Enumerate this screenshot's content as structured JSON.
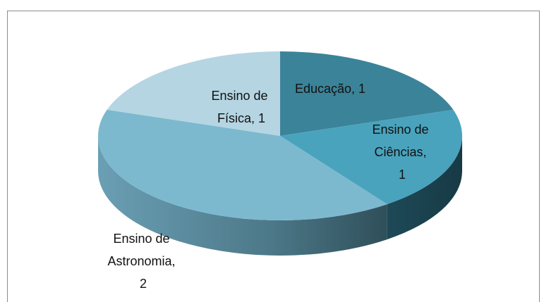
{
  "chart_data": {
    "type": "pie",
    "categories": [
      "Educação",
      "Ensino de Ciências",
      "Ensino de Astronomia",
      "Ensino de Física"
    ],
    "values": [
      1,
      1,
      2,
      1
    ],
    "value_labels": [
      "Educação, 1",
      "Ensino de Ciências, 1",
      "Ensino de Astronomia, 2",
      "Ensino de Física, 1"
    ],
    "colors": [
      "#3b8399",
      "#4aa3bd",
      "#7cb9cf",
      "#b5d5e2"
    ]
  }
}
